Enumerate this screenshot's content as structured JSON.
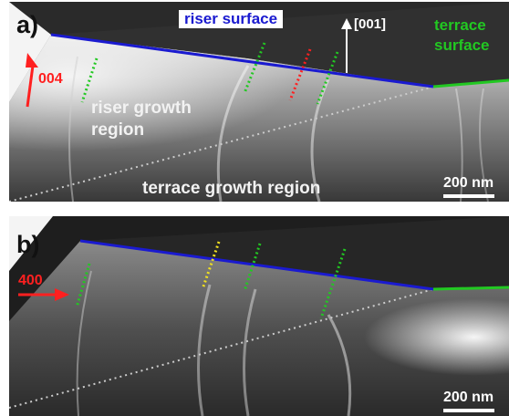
{
  "panel_a": {
    "label": "a)",
    "riser_surface": "riser surface",
    "direction": "[001]",
    "terrace_surface_line1": "terrace",
    "terrace_surface_line2": "surface",
    "reflection": "004",
    "riser_region_line1": "riser growth",
    "riser_region_line2": "region",
    "terrace_region": "terrace growth region",
    "scale": "200 nm"
  },
  "panel_b": {
    "label": "b)",
    "reflection": "400",
    "scale": "200 nm"
  },
  "colors": {
    "riser_line": "#1a1ad0",
    "terrace_line": "#22c822",
    "dislocation_green": "#22c822",
    "dislocation_red": "#ff2020",
    "dislocation_yellow": "#f0e020",
    "boundary": "#cccccc",
    "arrow_red": "#ff2020"
  }
}
